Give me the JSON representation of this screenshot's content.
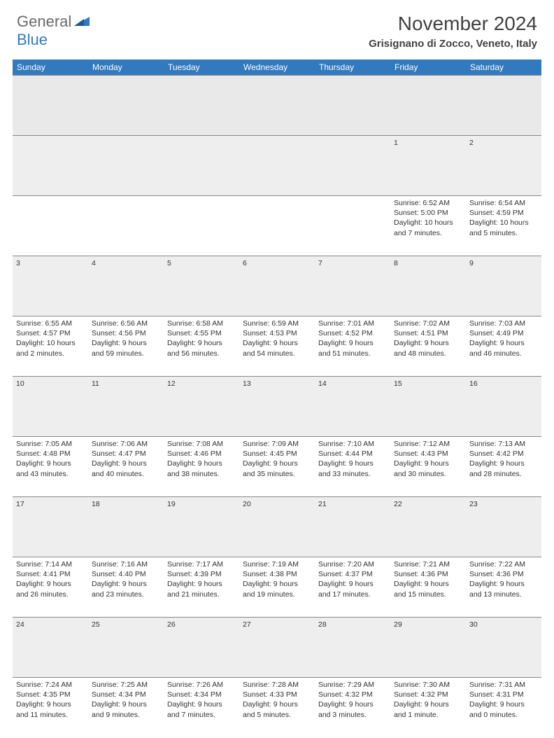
{
  "brand": {
    "name_part1": "General",
    "name_part2": "Blue",
    "gray_color": "#6a6a6a",
    "blue_color": "#3279bd"
  },
  "header": {
    "month_title": "November 2024",
    "location": "Grisignano di Zocco, Veneto, Italy"
  },
  "colors": {
    "header_bg": "#3279bd",
    "header_text": "#ffffff",
    "daynum_bg": "#eeeeee",
    "spacer_bg": "#e9e9e9",
    "border": "#888888",
    "text": "#333333"
  },
  "typography": {
    "title_fontsize": 28,
    "location_fontsize": 15,
    "dayhead_fontsize": 12,
    "cell_fontsize": 10.5
  },
  "day_headers": [
    "Sunday",
    "Monday",
    "Tuesday",
    "Wednesday",
    "Thursday",
    "Friday",
    "Saturday"
  ],
  "weeks": [
    [
      null,
      null,
      null,
      null,
      null,
      {
        "n": "1",
        "sunrise": "Sunrise: 6:52 AM",
        "sunset": "Sunset: 5:00 PM",
        "daylight": "Daylight: 10 hours and 7 minutes."
      },
      {
        "n": "2",
        "sunrise": "Sunrise: 6:54 AM",
        "sunset": "Sunset: 4:59 PM",
        "daylight": "Daylight: 10 hours and 5 minutes."
      }
    ],
    [
      {
        "n": "3",
        "sunrise": "Sunrise: 6:55 AM",
        "sunset": "Sunset: 4:57 PM",
        "daylight": "Daylight: 10 hours and 2 minutes."
      },
      {
        "n": "4",
        "sunrise": "Sunrise: 6:56 AM",
        "sunset": "Sunset: 4:56 PM",
        "daylight": "Daylight: 9 hours and 59 minutes."
      },
      {
        "n": "5",
        "sunrise": "Sunrise: 6:58 AM",
        "sunset": "Sunset: 4:55 PM",
        "daylight": "Daylight: 9 hours and 56 minutes."
      },
      {
        "n": "6",
        "sunrise": "Sunrise: 6:59 AM",
        "sunset": "Sunset: 4:53 PM",
        "daylight": "Daylight: 9 hours and 54 minutes."
      },
      {
        "n": "7",
        "sunrise": "Sunrise: 7:01 AM",
        "sunset": "Sunset: 4:52 PM",
        "daylight": "Daylight: 9 hours and 51 minutes."
      },
      {
        "n": "8",
        "sunrise": "Sunrise: 7:02 AM",
        "sunset": "Sunset: 4:51 PM",
        "daylight": "Daylight: 9 hours and 48 minutes."
      },
      {
        "n": "9",
        "sunrise": "Sunrise: 7:03 AM",
        "sunset": "Sunset: 4:49 PM",
        "daylight": "Daylight: 9 hours and 46 minutes."
      }
    ],
    [
      {
        "n": "10",
        "sunrise": "Sunrise: 7:05 AM",
        "sunset": "Sunset: 4:48 PM",
        "daylight": "Daylight: 9 hours and 43 minutes."
      },
      {
        "n": "11",
        "sunrise": "Sunrise: 7:06 AM",
        "sunset": "Sunset: 4:47 PM",
        "daylight": "Daylight: 9 hours and 40 minutes."
      },
      {
        "n": "12",
        "sunrise": "Sunrise: 7:08 AM",
        "sunset": "Sunset: 4:46 PM",
        "daylight": "Daylight: 9 hours and 38 minutes."
      },
      {
        "n": "13",
        "sunrise": "Sunrise: 7:09 AM",
        "sunset": "Sunset: 4:45 PM",
        "daylight": "Daylight: 9 hours and 35 minutes."
      },
      {
        "n": "14",
        "sunrise": "Sunrise: 7:10 AM",
        "sunset": "Sunset: 4:44 PM",
        "daylight": "Daylight: 9 hours and 33 minutes."
      },
      {
        "n": "15",
        "sunrise": "Sunrise: 7:12 AM",
        "sunset": "Sunset: 4:43 PM",
        "daylight": "Daylight: 9 hours and 30 minutes."
      },
      {
        "n": "16",
        "sunrise": "Sunrise: 7:13 AM",
        "sunset": "Sunset: 4:42 PM",
        "daylight": "Daylight: 9 hours and 28 minutes."
      }
    ],
    [
      {
        "n": "17",
        "sunrise": "Sunrise: 7:14 AM",
        "sunset": "Sunset: 4:41 PM",
        "daylight": "Daylight: 9 hours and 26 minutes."
      },
      {
        "n": "18",
        "sunrise": "Sunrise: 7:16 AM",
        "sunset": "Sunset: 4:40 PM",
        "daylight": "Daylight: 9 hours and 23 minutes."
      },
      {
        "n": "19",
        "sunrise": "Sunrise: 7:17 AM",
        "sunset": "Sunset: 4:39 PM",
        "daylight": "Daylight: 9 hours and 21 minutes."
      },
      {
        "n": "20",
        "sunrise": "Sunrise: 7:19 AM",
        "sunset": "Sunset: 4:38 PM",
        "daylight": "Daylight: 9 hours and 19 minutes."
      },
      {
        "n": "21",
        "sunrise": "Sunrise: 7:20 AM",
        "sunset": "Sunset: 4:37 PM",
        "daylight": "Daylight: 9 hours and 17 minutes."
      },
      {
        "n": "22",
        "sunrise": "Sunrise: 7:21 AM",
        "sunset": "Sunset: 4:36 PM",
        "daylight": "Daylight: 9 hours and 15 minutes."
      },
      {
        "n": "23",
        "sunrise": "Sunrise: 7:22 AM",
        "sunset": "Sunset: 4:36 PM",
        "daylight": "Daylight: 9 hours and 13 minutes."
      }
    ],
    [
      {
        "n": "24",
        "sunrise": "Sunrise: 7:24 AM",
        "sunset": "Sunset: 4:35 PM",
        "daylight": "Daylight: 9 hours and 11 minutes."
      },
      {
        "n": "25",
        "sunrise": "Sunrise: 7:25 AM",
        "sunset": "Sunset: 4:34 PM",
        "daylight": "Daylight: 9 hours and 9 minutes."
      },
      {
        "n": "26",
        "sunrise": "Sunrise: 7:26 AM",
        "sunset": "Sunset: 4:34 PM",
        "daylight": "Daylight: 9 hours and 7 minutes."
      },
      {
        "n": "27",
        "sunrise": "Sunrise: 7:28 AM",
        "sunset": "Sunset: 4:33 PM",
        "daylight": "Daylight: 9 hours and 5 minutes."
      },
      {
        "n": "28",
        "sunrise": "Sunrise: 7:29 AM",
        "sunset": "Sunset: 4:32 PM",
        "daylight": "Daylight: 9 hours and 3 minutes."
      },
      {
        "n": "29",
        "sunrise": "Sunrise: 7:30 AM",
        "sunset": "Sunset: 4:32 PM",
        "daylight": "Daylight: 9 hours and 1 minute."
      },
      {
        "n": "30",
        "sunrise": "Sunrise: 7:31 AM",
        "sunset": "Sunset: 4:31 PM",
        "daylight": "Daylight: 9 hours and 0 minutes."
      }
    ]
  ]
}
